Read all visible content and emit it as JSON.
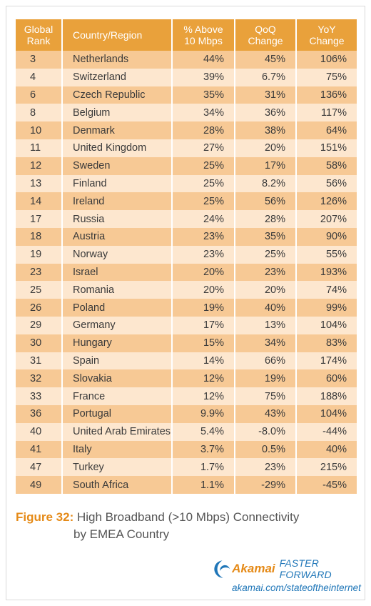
{
  "table": {
    "headers": [
      [
        "Global",
        "Rank"
      ],
      [
        "Country/Region",
        ""
      ],
      [
        "% Above",
        "10 Mbps"
      ],
      [
        "QoQ",
        "Change"
      ],
      [
        "YoY",
        "Change"
      ]
    ],
    "rows": [
      [
        "3",
        "Netherlands",
        "44%",
        "45%",
        "106%"
      ],
      [
        "4",
        "Switzerland",
        "39%",
        "6.7%",
        "75%"
      ],
      [
        "6",
        "Czech Republic",
        "35%",
        "31%",
        "136%"
      ],
      [
        "8",
        "Belgium",
        "34%",
        "36%",
        "117%"
      ],
      [
        "10",
        "Denmark",
        "28%",
        "38%",
        "64%"
      ],
      [
        "11",
        "United Kingdom",
        "27%",
        "20%",
        "151%"
      ],
      [
        "12",
        "Sweden",
        "25%",
        "17%",
        "58%"
      ],
      [
        "13",
        "Finland",
        "25%",
        "8.2%",
        "56%"
      ],
      [
        "14",
        "Ireland",
        "25%",
        "56%",
        "126%"
      ],
      [
        "17",
        "Russia",
        "24%",
        "28%",
        "207%"
      ],
      [
        "18",
        "Austria",
        "23%",
        "35%",
        "90%"
      ],
      [
        "19",
        "Norway",
        "23%",
        "25%",
        "55%"
      ],
      [
        "23",
        "Israel",
        "20%",
        "23%",
        "193%"
      ],
      [
        "25",
        "Romania",
        "20%",
        "20%",
        "74%"
      ],
      [
        "26",
        "Poland",
        "19%",
        "40%",
        "99%"
      ],
      [
        "29",
        "Germany",
        "17%",
        "13%",
        "104%"
      ],
      [
        "30",
        "Hungary",
        "15%",
        "34%",
        "83%"
      ],
      [
        "31",
        "Spain",
        "14%",
        "66%",
        "174%"
      ],
      [
        "32",
        "Slovakia",
        "12%",
        "19%",
        "60%"
      ],
      [
        "33",
        "France",
        "12%",
        "75%",
        "188%"
      ],
      [
        "36",
        "Portugal",
        "9.9%",
        "43%",
        "104%"
      ],
      [
        "40",
        "United Arab Emirates",
        "5.4%",
        "-8.0%",
        "-44%"
      ],
      [
        "41",
        "Italy",
        "3.7%",
        "0.5%",
        "40%"
      ],
      [
        "47",
        "Turkey",
        "1.7%",
        "23%",
        "215%"
      ],
      [
        "49",
        "South Africa",
        "1.1%",
        "-29%",
        "-45%"
      ]
    ]
  },
  "caption": {
    "label": "Figure 32:",
    "line1": " High Broadband (>10 Mbps) Connectivity",
    "line2": "by EMEA Country"
  },
  "branding": {
    "brand": "Akamai",
    "tagline": "FASTER FORWARD",
    "url": "akamai.com/stateoftheinternet",
    "icon": "akamai-wave-icon"
  },
  "colors": {
    "header": "#e9a13b",
    "row_dark": "#f7c995",
    "row_light": "#fde7cf",
    "accent": "#e58a17",
    "link": "#1f76b8"
  }
}
